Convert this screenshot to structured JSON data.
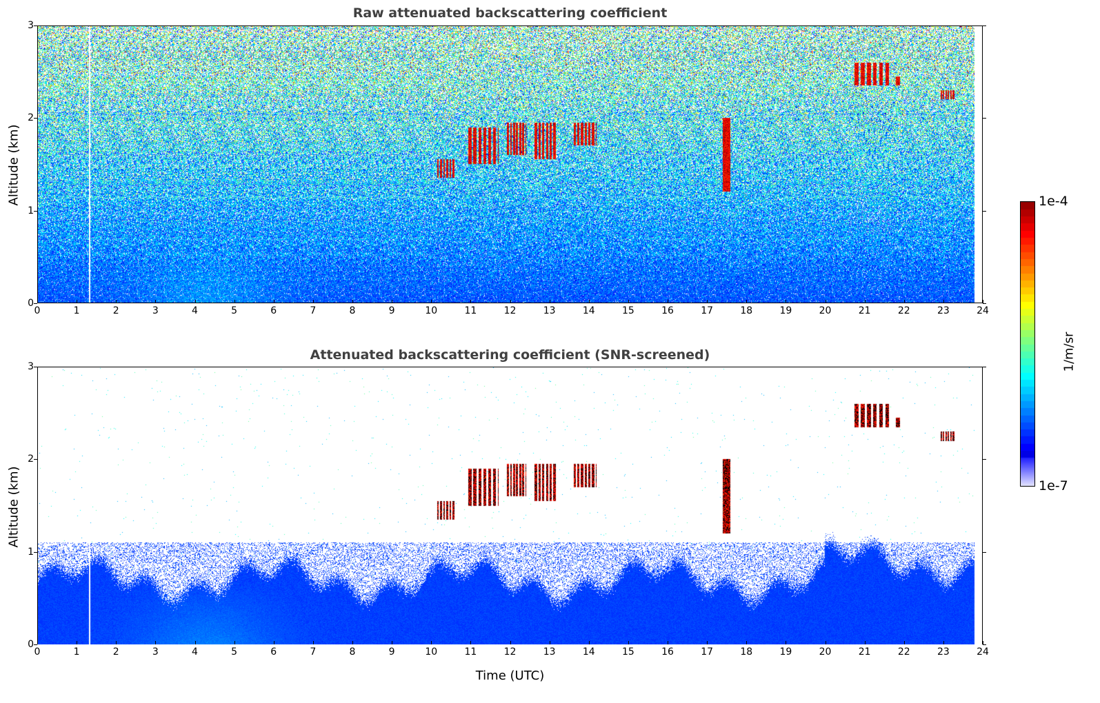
{
  "chart_data": [
    {
      "type": "heatmap",
      "title": "Raw attenuated backscattering coefficient",
      "ylabel": "Altitude (km)",
      "xlabel": "",
      "xlim": [
        0,
        24
      ],
      "ylim": [
        0,
        3
      ],
      "xticks": [
        "0",
        "1",
        "2",
        "3",
        "4",
        "5",
        "6",
        "7",
        "8",
        "9",
        "10",
        "11",
        "12",
        "13",
        "14",
        "15",
        "16",
        "17",
        "18",
        "19",
        "20",
        "21",
        "22",
        "23",
        "24"
      ],
      "yticks": [
        "0",
        "1",
        "2",
        "3"
      ],
      "data_end_time": 23.8,
      "boundary_layer_top_km": 0.6,
      "clouds": [
        {
          "t": [
            10.1,
            10.6
          ],
          "z": [
            1.35,
            1.55
          ]
        },
        {
          "t": [
            10.9,
            11.7
          ],
          "z": [
            1.5,
            1.9
          ]
        },
        {
          "t": [
            11.9,
            12.4
          ],
          "z": [
            1.6,
            1.95
          ]
        },
        {
          "t": [
            12.6,
            13.2
          ],
          "z": [
            1.55,
            1.95
          ]
        },
        {
          "t": [
            13.6,
            14.2
          ],
          "z": [
            1.7,
            1.95
          ]
        },
        {
          "t": [
            17.4,
            17.6
          ],
          "z": [
            1.2,
            2.0
          ]
        },
        {
          "t": [
            20.7,
            21.7
          ],
          "z": [
            2.35,
            2.6
          ]
        },
        {
          "t": [
            21.8,
            21.9
          ],
          "z": [
            2.35,
            2.45
          ]
        },
        {
          "t": [
            22.9,
            23.3
          ],
          "z": [
            2.2,
            2.3
          ]
        }
      ]
    },
    {
      "type": "heatmap",
      "title": "Attenuated backscattering coefficient (SNR-screened)",
      "ylabel": "Altitude (km)",
      "xlabel": "Time (UTC)",
      "xlim": [
        0,
        24
      ],
      "ylim": [
        0,
        3
      ],
      "xticks": [
        "0",
        "1",
        "2",
        "3",
        "4",
        "5",
        "6",
        "7",
        "8",
        "9",
        "10",
        "11",
        "12",
        "13",
        "14",
        "15",
        "16",
        "17",
        "18",
        "19",
        "20",
        "21",
        "22",
        "23",
        "24"
      ],
      "yticks": [
        "0",
        "1",
        "2",
        "3"
      ],
      "screen_top_km": 1.05
    }
  ],
  "colorbar": {
    "label": "1/m/sr",
    "min_label": "1e-7",
    "max_label": "1e-4",
    "colormap": "jet"
  }
}
